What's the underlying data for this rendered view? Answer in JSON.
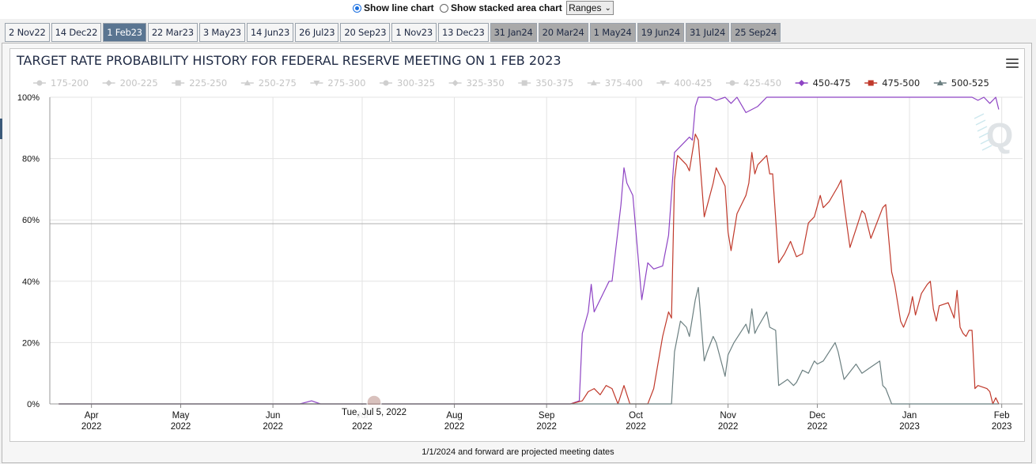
{
  "controls": {
    "line_chart_label": "Show line chart",
    "stacked_area_label": "Show stacked area chart",
    "ranges_label": "Ranges",
    "selected_view": "line"
  },
  "tabs": [
    {
      "label": "2 Nov22",
      "state": "normal"
    },
    {
      "label": "14 Dec22",
      "state": "normal"
    },
    {
      "label": "1 Feb23",
      "state": "active"
    },
    {
      "label": "22 Mar23",
      "state": "normal"
    },
    {
      "label": "3 May23",
      "state": "normal"
    },
    {
      "label": "14 Jun23",
      "state": "normal"
    },
    {
      "label": "26 Jul23",
      "state": "normal"
    },
    {
      "label": "20 Sep23",
      "state": "normal"
    },
    {
      "label": "1 Nov23",
      "state": "normal"
    },
    {
      "label": "13 Dec23",
      "state": "normal"
    },
    {
      "label": "31 Jan24",
      "state": "future"
    },
    {
      "label": "20 Mar24",
      "state": "future"
    },
    {
      "label": "1 May24",
      "state": "future"
    },
    {
      "label": "19 Jun24",
      "state": "future"
    },
    {
      "label": "31 Jul24",
      "state": "future"
    },
    {
      "label": "25 Sep24",
      "state": "future"
    }
  ],
  "footnote": "1/1/2024 and forward are projected meeting dates",
  "chart_data": {
    "type": "line",
    "title": "TARGET RATE PROBABILITY HISTORY FOR FEDERAL RESERVE MEETING ON 1 FEB 2023",
    "ylim": [
      0,
      100
    ],
    "y_ticks": [
      "0%",
      "20%",
      "40%",
      "60%",
      "80%",
      "100%"
    ],
    "x_range": [
      "2022-03-18",
      "2023-02-08"
    ],
    "x_ticks": [
      {
        "date": "2022-04-01",
        "label": "Apr",
        "year": "2022"
      },
      {
        "date": "2022-05-01",
        "label": "May",
        "year": "2022"
      },
      {
        "date": "2022-06-01",
        "label": "Jun",
        "year": "2022"
      },
      {
        "date": "2022-07-01",
        "label": "Jul",
        "year": "2022"
      },
      {
        "date": "2022-08-01",
        "label": "Aug",
        "year": "2022"
      },
      {
        "date": "2022-09-01",
        "label": "Sep",
        "year": "2022"
      },
      {
        "date": "2022-10-01",
        "label": "Oct",
        "year": "2022"
      },
      {
        "date": "2022-11-01",
        "label": "Nov",
        "year": "2022"
      },
      {
        "date": "2022-12-01",
        "label": "Dec",
        "year": "2022"
      },
      {
        "date": "2023-01-01",
        "label": "Jan",
        "year": "2023"
      },
      {
        "date": "2023-02-01",
        "label": "Feb",
        "year": "2023"
      }
    ],
    "grid": true,
    "legend_position": "top",
    "tooltip": "Tue, Jul 5, 2022",
    "tooltip_date": "2022-07-05",
    "legend": [
      {
        "name": "175-200",
        "marker": "circle",
        "active": false
      },
      {
        "name": "200-225",
        "marker": "diamond",
        "active": false
      },
      {
        "name": "225-250",
        "marker": "square",
        "active": false
      },
      {
        "name": "250-275",
        "marker": "triangle",
        "active": false
      },
      {
        "name": "275-300",
        "marker": "triangle-down",
        "active": false
      },
      {
        "name": "300-325",
        "marker": "circle",
        "active": false
      },
      {
        "name": "325-350",
        "marker": "diamond",
        "active": false
      },
      {
        "name": "350-375",
        "marker": "square",
        "active": false
      },
      {
        "name": "375-400",
        "marker": "triangle",
        "active": false
      },
      {
        "name": "400-425",
        "marker": "triangle-down",
        "active": false
      },
      {
        "name": "425-450",
        "marker": "circle",
        "active": false
      },
      {
        "name": "450-475",
        "marker": "diamond",
        "active": true,
        "color": "#8e44c4"
      },
      {
        "name": "475-500",
        "marker": "square",
        "active": true,
        "color": "#c0392b"
      },
      {
        "name": "500-525",
        "marker": "triangle",
        "active": true,
        "color": "#6b7f80"
      }
    ],
    "series": [
      {
        "name": "450-475",
        "color": "#8e44c4",
        "points": [
          [
            "2022-03-21",
            0
          ],
          [
            "2022-06-10",
            0
          ],
          [
            "2022-06-14",
            1
          ],
          [
            "2022-06-17",
            0
          ],
          [
            "2022-08-31",
            0
          ],
          [
            "2022-09-09",
            0
          ],
          [
            "2022-09-12",
            1
          ],
          [
            "2022-09-13",
            23
          ],
          [
            "2022-09-15",
            30
          ],
          [
            "2022-09-16",
            39
          ],
          [
            "2022-09-17",
            30
          ],
          [
            "2022-09-21",
            38
          ],
          [
            "2022-09-22",
            40
          ],
          [
            "2022-09-23",
            40
          ],
          [
            "2022-09-26",
            65
          ],
          [
            "2022-09-27",
            77
          ],
          [
            "2022-09-28",
            72
          ],
          [
            "2022-09-30",
            68
          ],
          [
            "2022-10-03",
            34
          ],
          [
            "2022-10-05",
            46
          ],
          [
            "2022-10-07",
            44
          ],
          [
            "2022-10-10",
            45
          ],
          [
            "2022-10-12",
            55
          ],
          [
            "2022-10-14",
            82
          ],
          [
            "2022-10-17",
            85
          ],
          [
            "2022-10-19",
            87
          ],
          [
            "2022-10-20",
            86
          ],
          [
            "2022-10-21",
            97
          ],
          [
            "2022-10-22",
            100
          ],
          [
            "2022-10-26",
            100
          ],
          [
            "2022-10-28",
            99
          ],
          [
            "2022-10-31",
            100
          ],
          [
            "2022-11-02",
            98
          ],
          [
            "2022-11-04",
            100
          ],
          [
            "2022-11-07",
            95
          ],
          [
            "2022-11-09",
            96
          ],
          [
            "2022-11-11",
            97
          ],
          [
            "2022-11-14",
            100
          ],
          [
            "2022-12-10",
            100
          ],
          [
            "2023-01-15",
            100
          ],
          [
            "2023-01-22",
            100
          ],
          [
            "2023-01-24",
            99
          ],
          [
            "2023-01-26",
            100
          ],
          [
            "2023-01-28",
            98
          ],
          [
            "2023-01-30",
            100
          ],
          [
            "2023-01-31",
            96
          ]
        ]
      },
      {
        "name": "475-500",
        "color": "#c0392b",
        "points": [
          [
            "2022-03-21",
            0
          ],
          [
            "2022-09-09",
            0
          ],
          [
            "2022-09-13",
            1
          ],
          [
            "2022-09-15",
            4
          ],
          [
            "2022-09-17",
            5
          ],
          [
            "2022-09-19",
            3
          ],
          [
            "2022-09-21",
            6
          ],
          [
            "2022-09-23",
            5
          ],
          [
            "2022-09-25",
            0
          ],
          [
            "2022-09-27",
            6
          ],
          [
            "2022-09-29",
            0
          ],
          [
            "2022-10-01",
            0
          ],
          [
            "2022-10-05",
            0
          ],
          [
            "2022-10-07",
            5
          ],
          [
            "2022-10-10",
            22
          ],
          [
            "2022-10-12",
            30
          ],
          [
            "2022-10-13",
            28
          ],
          [
            "2022-10-14",
            73
          ],
          [
            "2022-10-15",
            81
          ],
          [
            "2022-10-18",
            78
          ],
          [
            "2022-10-19",
            76
          ],
          [
            "2022-10-21",
            88
          ],
          [
            "2022-10-22",
            86
          ],
          [
            "2022-10-24",
            61
          ],
          [
            "2022-10-27",
            72
          ],
          [
            "2022-10-28",
            77
          ],
          [
            "2022-10-31",
            71
          ],
          [
            "2022-11-01",
            56
          ],
          [
            "2022-11-02",
            50
          ],
          [
            "2022-11-04",
            62
          ],
          [
            "2022-11-07",
            68
          ],
          [
            "2022-11-08",
            72
          ],
          [
            "2022-11-09",
            82
          ],
          [
            "2022-11-10",
            75
          ],
          [
            "2022-11-11",
            78
          ],
          [
            "2022-11-14",
            81
          ],
          [
            "2022-11-15",
            75
          ],
          [
            "2022-11-16",
            75
          ],
          [
            "2022-11-18",
            46
          ],
          [
            "2022-11-20",
            49
          ],
          [
            "2022-11-22",
            53
          ],
          [
            "2022-11-24",
            48
          ],
          [
            "2022-11-26",
            49
          ],
          [
            "2022-11-28",
            59
          ],
          [
            "2022-11-30",
            61
          ],
          [
            "2022-12-02",
            68
          ],
          [
            "2022-12-03",
            64
          ],
          [
            "2022-12-05",
            66
          ],
          [
            "2022-12-08",
            71
          ],
          [
            "2022-12-09",
            73
          ],
          [
            "2022-12-10",
            65
          ],
          [
            "2022-12-12",
            51
          ],
          [
            "2022-12-14",
            57
          ],
          [
            "2022-12-16",
            63
          ],
          [
            "2022-12-17",
            62
          ],
          [
            "2022-12-19",
            54
          ],
          [
            "2022-12-21",
            59
          ],
          [
            "2022-12-23",
            64
          ],
          [
            "2022-12-24",
            65
          ],
          [
            "2022-12-26",
            43
          ],
          [
            "2022-12-27",
            39
          ],
          [
            "2022-12-29",
            27
          ],
          [
            "2022-12-30",
            25
          ],
          [
            "2023-01-01",
            30
          ],
          [
            "2023-01-02",
            35
          ],
          [
            "2023-01-03",
            29
          ],
          [
            "2023-01-05",
            36
          ],
          [
            "2023-01-07",
            39
          ],
          [
            "2023-01-08",
            40
          ],
          [
            "2023-01-09",
            31
          ],
          [
            "2023-01-10",
            27
          ],
          [
            "2023-01-11",
            32
          ],
          [
            "2023-01-14",
            33
          ],
          [
            "2023-01-16",
            28
          ],
          [
            "2023-01-17",
            37
          ],
          [
            "2023-01-18",
            25
          ],
          [
            "2023-01-19",
            23
          ],
          [
            "2023-01-20",
            22
          ],
          [
            "2023-01-21",
            24
          ],
          [
            "2023-01-22",
            24
          ],
          [
            "2023-01-23",
            5
          ],
          [
            "2023-01-24",
            6
          ],
          [
            "2023-01-27",
            5
          ],
          [
            "2023-01-28",
            4
          ],
          [
            "2023-01-29",
            0
          ],
          [
            "2023-01-30",
            2
          ],
          [
            "2023-01-31",
            0
          ]
        ]
      },
      {
        "name": "500-525",
        "color": "#6b7f80",
        "points": [
          [
            "2022-03-21",
            0
          ],
          [
            "2022-10-13",
            0
          ],
          [
            "2022-10-14",
            17
          ],
          [
            "2022-10-16",
            27
          ],
          [
            "2022-10-18",
            25
          ],
          [
            "2022-10-19",
            22
          ],
          [
            "2022-10-21",
            34
          ],
          [
            "2022-10-22",
            38
          ],
          [
            "2022-10-24",
            14
          ],
          [
            "2022-10-25",
            17
          ],
          [
            "2022-10-27",
            22
          ],
          [
            "2022-10-28",
            20
          ],
          [
            "2022-10-31",
            9
          ],
          [
            "2022-11-01",
            16
          ],
          [
            "2022-11-03",
            20
          ],
          [
            "2022-11-07",
            26
          ],
          [
            "2022-11-08",
            23
          ],
          [
            "2022-11-09",
            31
          ],
          [
            "2022-11-10",
            23
          ],
          [
            "2022-11-11",
            25
          ],
          [
            "2022-11-14",
            30
          ],
          [
            "2022-11-15",
            25
          ],
          [
            "2022-11-17",
            24
          ],
          [
            "2022-11-18",
            6
          ],
          [
            "2022-11-21",
            8
          ],
          [
            "2022-11-23",
            6
          ],
          [
            "2022-11-24",
            7
          ],
          [
            "2022-11-26",
            11
          ],
          [
            "2022-11-28",
            10
          ],
          [
            "2022-11-30",
            14
          ],
          [
            "2022-12-01",
            13
          ],
          [
            "2022-12-03",
            14
          ],
          [
            "2022-12-07",
            20
          ],
          [
            "2022-12-08",
            17
          ],
          [
            "2022-12-10",
            8
          ],
          [
            "2022-12-14",
            13
          ],
          [
            "2022-12-16",
            10
          ],
          [
            "2022-12-19",
            12
          ],
          [
            "2022-12-22",
            14
          ],
          [
            "2022-12-23",
            6
          ],
          [
            "2022-12-24",
            5
          ],
          [
            "2022-12-26",
            0
          ],
          [
            "2023-01-31",
            0
          ]
        ]
      }
    ]
  }
}
